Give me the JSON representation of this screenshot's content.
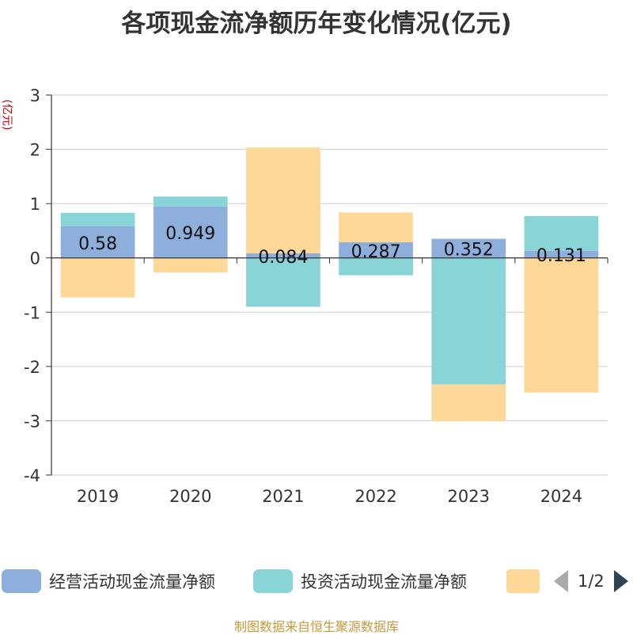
{
  "title": "各项现金流净额历年变化情况(亿元)",
  "source": "制图数据来自恒生聚源数据库",
  "colors": {
    "operating": "#8eaedb",
    "investing": "#88d4d6",
    "financing": "#fed898",
    "grid": "#cccccc",
    "axis": "#333333"
  },
  "legend": {
    "items": [
      {
        "label": "经营活动现金流量净额",
        "color": "#8eaedb"
      },
      {
        "label": "投资活动现金流量净额",
        "color": "#88d4d6"
      },
      {
        "label": "",
        "color": "#fed898"
      }
    ],
    "page": "1/2"
  },
  "chart_data": {
    "type": "bar",
    "stacked": true,
    "title": "各项现金流净额历年变化情况(亿元)",
    "ylabel": "(亿元)",
    "categories": [
      "2019",
      "2020",
      "2021",
      "2022",
      "2023",
      "2024"
    ],
    "ylim": [
      -4,
      3
    ],
    "yticks": [
      3,
      2,
      1,
      0,
      -1,
      -2,
      -3,
      -4
    ],
    "grid": true,
    "series": [
      {
        "name": "经营活动现金流量净额",
        "values": [
          0.58,
          0.949,
          0.084,
          0.287,
          0.352,
          0.131
        ],
        "labels": [
          "0.58",
          "0.949",
          "0.084",
          "0.287",
          "0.352",
          "0.131"
        ]
      },
      {
        "name": "投资活动现金流量净额",
        "values": [
          0.25,
          0.18,
          -0.9,
          -0.32,
          -2.33,
          0.64
        ]
      },
      {
        "values": [
          -0.73,
          -0.27,
          1.95,
          0.55,
          -0.68,
          -2.48
        ]
      }
    ]
  }
}
